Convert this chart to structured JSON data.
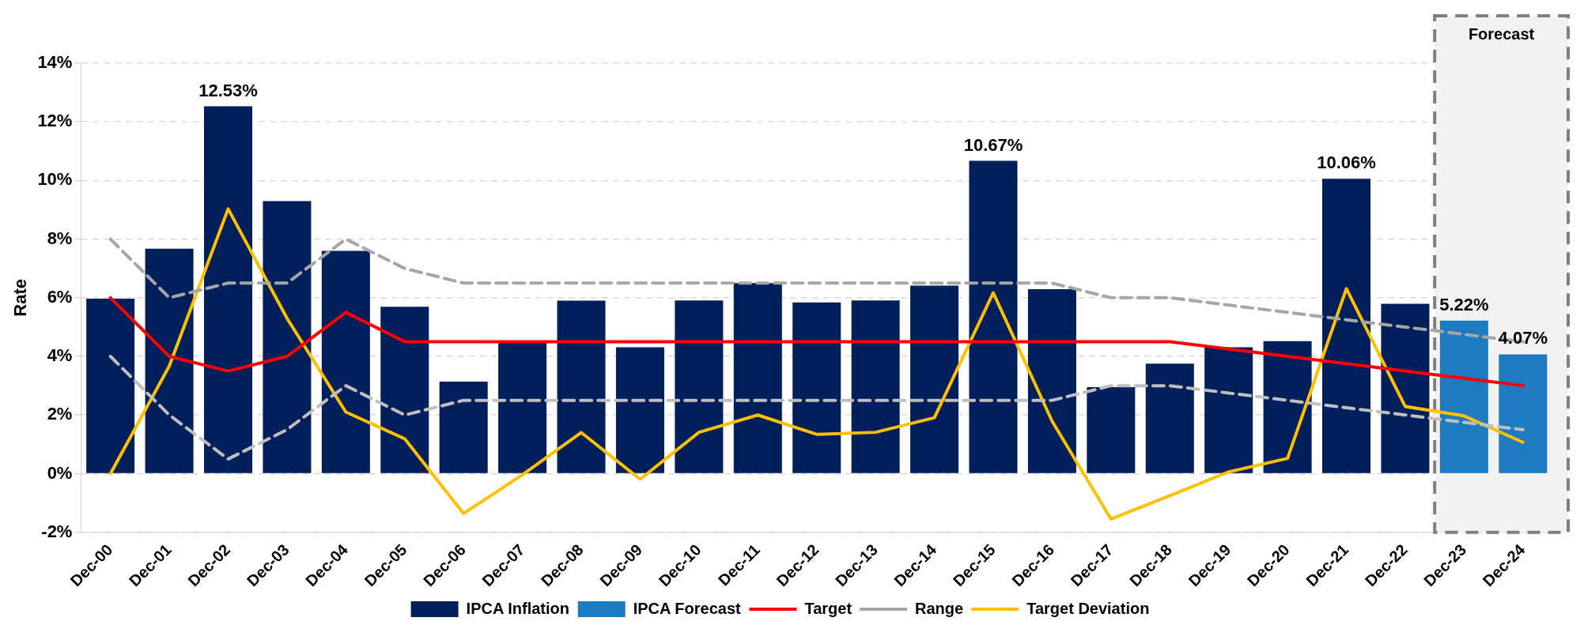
{
  "chart_data": {
    "type": "bar",
    "ylabel": "Rate",
    "categories": [
      "Dec-00",
      "Dec-01",
      "Dec-02",
      "Dec-03",
      "Dec-04",
      "Dec-05",
      "Dec-06",
      "Dec-07",
      "Dec-08",
      "Dec-09",
      "Dec-10",
      "Dec-11",
      "Dec-12",
      "Dec-13",
      "Dec-14",
      "Dec-15",
      "Dec-16",
      "Dec-17",
      "Dec-18",
      "Dec-19",
      "Dec-20",
      "Dec-21",
      "Dec-22",
      "Dec-23",
      "Dec-24"
    ],
    "series": [
      {
        "name": "IPCA Inflation",
        "color": "#001f5b",
        "values": [
          5.97,
          7.67,
          12.53,
          9.3,
          7.6,
          5.69,
          3.14,
          4.46,
          5.9,
          4.31,
          5.91,
          6.5,
          5.84,
          5.91,
          6.41,
          10.67,
          6.29,
          2.95,
          3.75,
          4.31,
          4.52,
          10.06,
          5.79,
          null,
          null
        ],
        "value_labels": [
          null,
          null,
          "12.53%",
          null,
          null,
          null,
          null,
          null,
          null,
          null,
          null,
          null,
          null,
          null,
          null,
          "10.67%",
          null,
          null,
          null,
          null,
          null,
          "10.06%",
          null,
          null,
          null
        ]
      },
      {
        "name": "IPCA Forecast",
        "color": "#1f7bbf",
        "values": [
          null,
          null,
          null,
          null,
          null,
          null,
          null,
          null,
          null,
          null,
          null,
          null,
          null,
          null,
          null,
          null,
          null,
          null,
          null,
          null,
          null,
          null,
          null,
          5.22,
          4.07
        ],
        "value_labels": [
          null,
          null,
          null,
          null,
          null,
          null,
          null,
          null,
          null,
          null,
          null,
          null,
          null,
          null,
          null,
          null,
          null,
          null,
          null,
          null,
          null,
          null,
          null,
          "5.22%",
          "4.07%"
        ]
      },
      {
        "name": "Target",
        "type": "line",
        "color": "#ff0000",
        "line_style": "solid",
        "values": [
          6,
          4,
          3.5,
          4,
          5.5,
          4.5,
          4.5,
          4.5,
          4.5,
          4.5,
          4.5,
          4.5,
          4.5,
          4.5,
          4.5,
          4.5,
          4.5,
          4.5,
          4.5,
          4.25,
          4,
          3.75,
          3.5,
          3.25,
          3
        ]
      },
      {
        "name": "Range",
        "type": "line",
        "color": "#a6a6a6",
        "line_style": "dashed",
        "values": [
          8,
          6,
          6.5,
          6.5,
          8,
          7,
          6.5,
          6.5,
          6.5,
          6.5,
          6.5,
          6.5,
          6.5,
          6.5,
          6.5,
          6.5,
          6.5,
          6,
          6,
          5.75,
          5.5,
          5.25,
          5,
          4.75,
          4.5
        ]
      },
      {
        "type": "line",
        "color": "#bfbfbf",
        "line_style": "dashed",
        "values": [
          4,
          2,
          0.5,
          1.5,
          3,
          2,
          2.5,
          2.5,
          2.5,
          2.5,
          2.5,
          2.5,
          2.5,
          2.5,
          2.5,
          2.5,
          2.5,
          3,
          3,
          2.75,
          2.5,
          2.25,
          2,
          1.75,
          1.5
        ]
      },
      {
        "name": "Target Deviation",
        "type": "line",
        "color": "#ffc000",
        "line_style": "solid",
        "values": [
          0,
          3.67,
          9.03,
          5.3,
          2.1,
          1.19,
          -1.36,
          -0.04,
          1.4,
          -0.19,
          1.41,
          2.0,
          1.34,
          1.41,
          1.91,
          6.17,
          1.79,
          -1.55,
          -0.75,
          0.06,
          0.52,
          6.31,
          2.29,
          1.97,
          1.07
        ]
      }
    ],
    "ylim": [
      -2,
      14
    ],
    "yticks": [
      {
        "value": -2,
        "label": "-2%"
      },
      {
        "value": 0,
        "label": "0%"
      },
      {
        "value": 2,
        "label": "2%"
      },
      {
        "value": 4,
        "label": "4%"
      },
      {
        "value": 6,
        "label": "6%"
      },
      {
        "value": 8,
        "label": "8%"
      },
      {
        "value": 10,
        "label": "10%"
      },
      {
        "value": 12,
        "label": "12%"
      },
      {
        "value": 14,
        "label": "14%"
      }
    ],
    "bands": [
      {
        "axis": "x",
        "from": "Dec-23",
        "to": "Dec-24",
        "label": "Forecast",
        "color": "#f2f2f2"
      }
    ],
    "grid": "y",
    "legend": "bottom",
    "marker": "none"
  }
}
